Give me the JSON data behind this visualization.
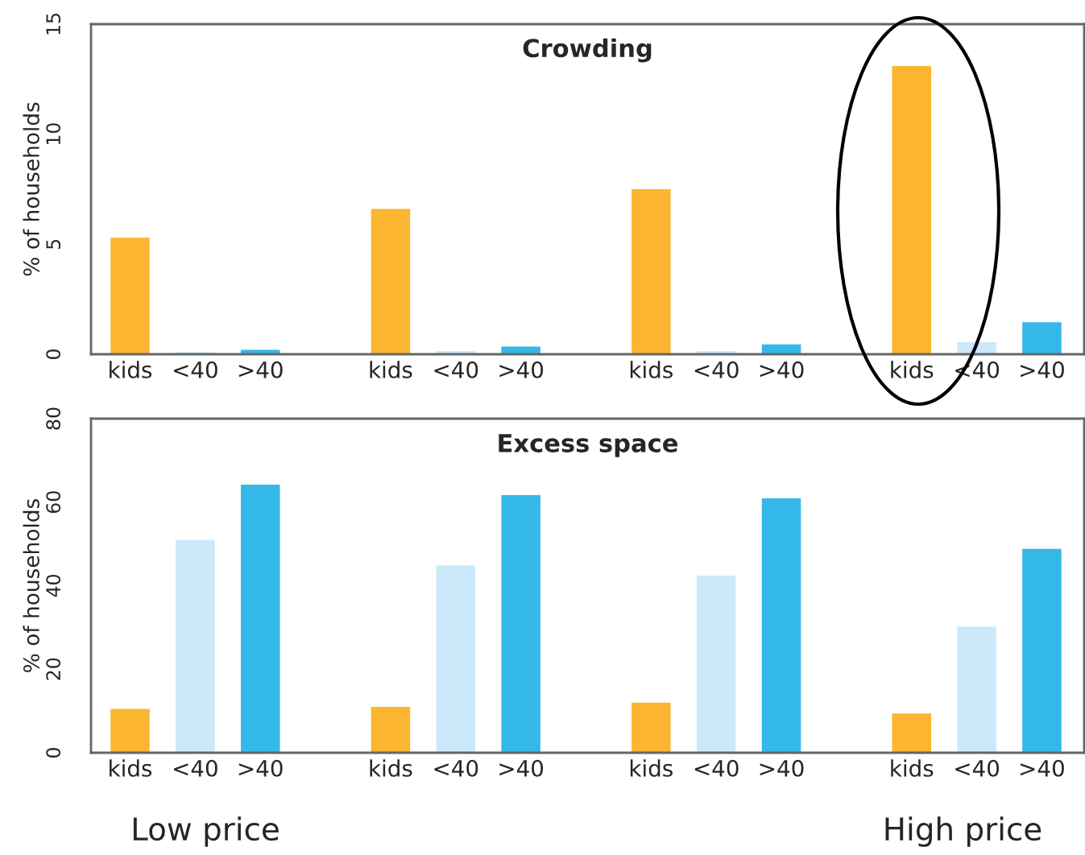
{
  "chart_data": [
    {
      "type": "bar",
      "title": "Crowding",
      "ylabel": "% of households",
      "categories": [
        "kids",
        "<40",
        ">40",
        null,
        "kids",
        "<40",
        ">40",
        null,
        "kids",
        "<40",
        ">40",
        null,
        "kids",
        "<40",
        ">40"
      ],
      "values": [
        5.3,
        0.1,
        0.2,
        null,
        6.6,
        0.15,
        0.35,
        null,
        7.5,
        0.15,
        0.45,
        null,
        13.1,
        0.55,
        1.45
      ],
      "colors": [
        "#fbb531",
        "#cce9fb",
        "#34b8e8",
        "#ffffff",
        "#fbb531",
        "#cce9fb",
        "#34b8e8",
        "#ffffff",
        "#fbb531",
        "#cce9fb",
        "#34b8e8",
        "#ffffff",
        "#fbb531",
        "#cce9fb",
        "#34b8e8"
      ],
      "ylim": [
        0,
        15
      ],
      "yticks": [
        0,
        5,
        10,
        15
      ],
      "grid": false
    },
    {
      "type": "bar",
      "title": "Excess space",
      "ylabel": "% of households",
      "categories": [
        "kids",
        "<40",
        ">40",
        null,
        "kids",
        "<40",
        ">40",
        null,
        "kids",
        "<40",
        ">40",
        null,
        "kids",
        "<40",
        ">40"
      ],
      "values": [
        10.5,
        51,
        64.2,
        null,
        11,
        44.8,
        61.7,
        null,
        12,
        42.4,
        60.9,
        null,
        9.4,
        30.2,
        48.8
      ],
      "colors": [
        "#fbb531",
        "#cce9fb",
        "#34b8e8",
        "#ffffff",
        "#fbb531",
        "#cce9fb",
        "#34b8e8",
        "#ffffff",
        "#fbb531",
        "#cce9fb",
        "#34b8e8",
        "#ffffff",
        "#fbb531",
        "#cce9fb",
        "#34b8e8"
      ],
      "ylim": [
        0,
        80
      ],
      "yticks": [
        0,
        20,
        40,
        60,
        80
      ],
      "grid": false,
      "annotations": [
        "Low price",
        "High price"
      ]
    }
  ]
}
